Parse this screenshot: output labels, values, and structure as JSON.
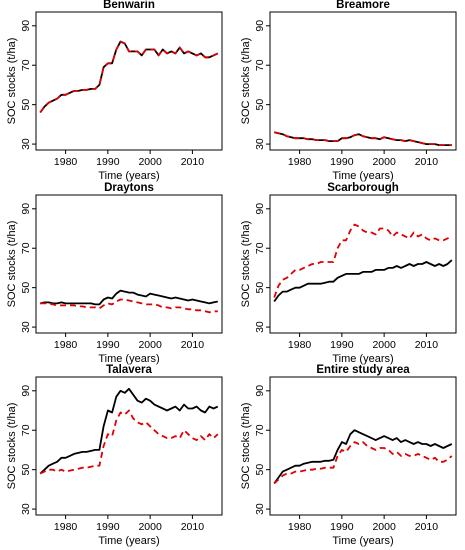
{
  "chart_data": [
    {
      "type": "line",
      "title": "Benwarin",
      "xlabel": "Time (years)",
      "ylabel": "SOC stocks (t/ha)",
      "xlim": [
        1973,
        2017
      ],
      "ylim": [
        27,
        97
      ],
      "xticks": [
        1980,
        1990,
        2000,
        2010
      ],
      "yticks": [
        30,
        50,
        70,
        90
      ],
      "grid": false,
      "x": [
        1974,
        1975,
        1976,
        1977,
        1978,
        1979,
        1980,
        1981,
        1982,
        1983,
        1984,
        1985,
        1986,
        1987,
        1988,
        1989,
        1990,
        1991,
        1992,
        1993,
        1994,
        1995,
        1996,
        1997,
        1998,
        1999,
        2000,
        2001,
        2002,
        2003,
        2004,
        2005,
        2006,
        2007,
        2008,
        2009,
        2010,
        2011,
        2012,
        2013,
        2014,
        2015,
        2016
      ],
      "series": [
        {
          "color": "#000000",
          "style": "solid",
          "values": [
            46,
            49,
            51,
            52,
            53,
            55,
            55,
            56,
            57,
            57,
            57.5,
            57.5,
            58,
            58,
            60,
            69,
            71,
            71,
            78,
            82,
            81,
            77,
            77,
            77,
            75,
            78,
            78,
            78,
            75,
            78,
            76,
            77,
            76,
            79,
            76,
            77,
            76,
            75,
            76,
            74,
            74,
            75,
            76
          ]
        },
        {
          "color": "#e00000",
          "style": "dashed",
          "values": [
            46,
            49,
            51,
            52,
            53,
            55,
            55,
            56,
            57,
            57,
            57.5,
            57.5,
            58,
            58,
            60,
            69,
            71,
            71,
            78,
            82,
            81,
            77,
            77,
            77,
            75,
            78,
            78,
            78,
            75,
            78,
            76,
            77,
            76,
            79,
            76,
            77,
            76,
            75,
            76,
            74,
            74,
            75,
            76
          ]
        }
      ]
    },
    {
      "type": "line",
      "title": "Breamore",
      "xlabel": "Time (years)",
      "ylabel": "SOC stocks (t/ha)",
      "xlim": [
        1973,
        2017
      ],
      "ylim": [
        27,
        97
      ],
      "xticks": [
        1980,
        1990,
        2000,
        2010
      ],
      "yticks": [
        30,
        50,
        70,
        90
      ],
      "grid": false,
      "x": [
        1974,
        1975,
        1976,
        1977,
        1978,
        1979,
        1980,
        1981,
        1982,
        1983,
        1984,
        1985,
        1986,
        1987,
        1988,
        1989,
        1990,
        1991,
        1992,
        1993,
        1994,
        1995,
        1996,
        1997,
        1998,
        1999,
        2000,
        2001,
        2002,
        2003,
        2004,
        2005,
        2006,
        2007,
        2008,
        2009,
        2010,
        2011,
        2012,
        2013,
        2014,
        2015,
        2016
      ],
      "series": [
        {
          "color": "#000000",
          "style": "solid",
          "values": [
            36,
            35.5,
            35,
            34,
            33.5,
            33,
            33,
            33,
            32.5,
            32.5,
            32,
            32,
            32,
            31.5,
            31.5,
            31.5,
            33,
            33,
            33.5,
            34.5,
            35,
            34,
            33.5,
            33,
            33,
            32.5,
            33.5,
            33,
            32.5,
            32,
            32,
            31.5,
            32,
            31.5,
            31,
            30.5,
            30,
            30,
            30,
            29.5,
            29.5,
            29.5,
            29.5
          ]
        },
        {
          "color": "#e00000",
          "style": "dashed",
          "values": [
            36,
            35.5,
            35,
            34,
            33.5,
            33,
            33,
            33,
            32.5,
            32.5,
            32,
            32,
            32,
            31.5,
            31.5,
            31.5,
            33,
            33,
            33.5,
            34.5,
            35,
            34,
            33.5,
            33,
            33,
            32.5,
            33.5,
            33,
            32.5,
            32,
            32,
            31.5,
            32,
            31.5,
            31,
            30.5,
            30,
            30,
            30,
            29.5,
            29.5,
            29.5,
            29.5
          ]
        }
      ]
    },
    {
      "type": "line",
      "title": "Draytons",
      "xlabel": "Time (years)",
      "ylabel": "SOC stocks (t/ha)",
      "xlim": [
        1973,
        2017
      ],
      "ylim": [
        27,
        97
      ],
      "xticks": [
        1980,
        1990,
        2000,
        2010
      ],
      "yticks": [
        30,
        50,
        70,
        90
      ],
      "grid": false,
      "x": [
        1974,
        1975,
        1976,
        1977,
        1978,
        1979,
        1980,
        1981,
        1982,
        1983,
        1984,
        1985,
        1986,
        1987,
        1988,
        1989,
        1990,
        1991,
        1992,
        1993,
        1994,
        1995,
        1996,
        1997,
        1998,
        1999,
        2000,
        2001,
        2002,
        2003,
        2004,
        2005,
        2006,
        2007,
        2008,
        2009,
        2010,
        2011,
        2012,
        2013,
        2014,
        2015,
        2016
      ],
      "series": [
        {
          "color": "#000000",
          "style": "solid",
          "values": [
            42,
            42.5,
            42.5,
            42,
            42,
            42.5,
            42,
            42,
            42,
            42,
            42,
            42,
            42,
            41.5,
            41.5,
            44,
            45,
            44.5,
            47,
            48.5,
            48,
            47.5,
            47.5,
            46.5,
            46,
            45.5,
            47,
            46.5,
            46,
            45.5,
            45,
            44.5,
            45,
            44.5,
            44,
            43.5,
            44,
            43.5,
            43,
            42.5,
            42,
            42.5,
            43
          ]
        },
        {
          "color": "#e00000",
          "style": "dashed",
          "values": [
            42,
            42,
            42,
            41.5,
            41,
            41,
            41,
            41,
            41,
            40.5,
            40.5,
            40,
            40,
            40,
            39.5,
            41,
            42,
            41.5,
            43,
            44,
            44,
            43.5,
            43,
            42.5,
            42,
            41.5,
            41.5,
            41.5,
            41,
            40,
            40,
            39.5,
            40,
            40,
            39.5,
            39,
            39,
            38.5,
            38.5,
            38,
            37.5,
            38,
            38
          ]
        }
      ]
    },
    {
      "type": "line",
      "title": "Scarborough",
      "xlabel": "Time (years)",
      "ylabel": "SOC stocks (t/ha)",
      "xlim": [
        1973,
        2017
      ],
      "ylim": [
        27,
        97
      ],
      "xticks": [
        1980,
        1990,
        2000,
        2010
      ],
      "yticks": [
        30,
        50,
        70,
        90
      ],
      "grid": false,
      "x": [
        1974,
        1975,
        1976,
        1977,
        1978,
        1979,
        1980,
        1981,
        1982,
        1983,
        1984,
        1985,
        1986,
        1987,
        1988,
        1989,
        1990,
        1991,
        1992,
        1993,
        1994,
        1995,
        1996,
        1997,
        1998,
        1999,
        2000,
        2001,
        2002,
        2003,
        2004,
        2005,
        2006,
        2007,
        2008,
        2009,
        2010,
        2011,
        2012,
        2013,
        2014,
        2015,
        2016
      ],
      "series": [
        {
          "color": "#000000",
          "style": "solid",
          "values": [
            43,
            46,
            48,
            48,
            49,
            50,
            50,
            51,
            52,
            52,
            52,
            52,
            52.5,
            53,
            53,
            55,
            56,
            57,
            57,
            57,
            57,
            58,
            58,
            58,
            59,
            59,
            59,
            60,
            60,
            61,
            60,
            61,
            62,
            61,
            62,
            62,
            63,
            62,
            61,
            62,
            61,
            62,
            64
          ]
        },
        {
          "color": "#e00000",
          "style": "dashed",
          "values": [
            45,
            51,
            54,
            55,
            57,
            59,
            59,
            60,
            61,
            62,
            62,
            63,
            63,
            63,
            63,
            70,
            74,
            74,
            79,
            82,
            81,
            79,
            78,
            78,
            77,
            80,
            80,
            79,
            76,
            78,
            77,
            76,
            75,
            78,
            76,
            77,
            75,
            74,
            75,
            74,
            74,
            75,
            76
          ]
        }
      ]
    },
    {
      "type": "line",
      "title": "Talavera",
      "xlabel": "Time (years)",
      "ylabel": "SOC stocks (t/ha)",
      "xlim": [
        1973,
        2017
      ],
      "ylim": [
        27,
        97
      ],
      "xticks": [
        1980,
        1990,
        2000,
        2010
      ],
      "yticks": [
        30,
        50,
        70,
        90
      ],
      "grid": false,
      "x": [
        1974,
        1975,
        1976,
        1977,
        1978,
        1979,
        1980,
        1981,
        1982,
        1983,
        1984,
        1985,
        1986,
        1987,
        1988,
        1989,
        1990,
        1991,
        1992,
        1993,
        1994,
        1995,
        1996,
        1997,
        1998,
        1999,
        2000,
        2001,
        2002,
        2003,
        2004,
        2005,
        2006,
        2007,
        2008,
        2009,
        2010,
        2011,
        2012,
        2013,
        2014,
        2015,
        2016
      ],
      "series": [
        {
          "color": "#000000",
          "style": "solid",
          "values": [
            48,
            50,
            52,
            53,
            54,
            56,
            56,
            57,
            58,
            58.5,
            59,
            59,
            59.5,
            60,
            60,
            72,
            80,
            79,
            87,
            90,
            89,
            91,
            88,
            85,
            84,
            86,
            85,
            83,
            82,
            81,
            80,
            81,
            82,
            80,
            83,
            81,
            81,
            82,
            80,
            79,
            82,
            81,
            82
          ]
        },
        {
          "color": "#e00000",
          "style": "dashed",
          "values": [
            48,
            49,
            50,
            50,
            49,
            50,
            49,
            49.5,
            50,
            50.5,
            51,
            51,
            51.5,
            52,
            52,
            62,
            68,
            67,
            75,
            79,
            78,
            80,
            76,
            74,
            73,
            74,
            72,
            70,
            68,
            67,
            66,
            66,
            67,
            66,
            70,
            68,
            66,
            65,
            67,
            65,
            68,
            66,
            68
          ]
        }
      ]
    },
    {
      "type": "line",
      "title": "Entire study area",
      "xlabel": "Time (years)",
      "ylabel": "SOC stocks (t/ha)",
      "xlim": [
        1973,
        2017
      ],
      "ylim": [
        27,
        97
      ],
      "xticks": [
        1980,
        1990,
        2000,
        2010
      ],
      "yticks": [
        30,
        50,
        70,
        90
      ],
      "grid": false,
      "x": [
        1974,
        1975,
        1976,
        1977,
        1978,
        1979,
        1980,
        1981,
        1982,
        1983,
        1984,
        1985,
        1986,
        1987,
        1988,
        1989,
        1990,
        1991,
        1992,
        1993,
        1994,
        1995,
        1996,
        1997,
        1998,
        1999,
        2000,
        2001,
        2002,
        2003,
        2004,
        2005,
        2006,
        2007,
        2008,
        2009,
        2010,
        2011,
        2012,
        2013,
        2014,
        2015,
        2016
      ],
      "series": [
        {
          "color": "#000000",
          "style": "solid",
          "values": [
            43,
            46,
            49,
            50,
            51,
            52,
            52,
            53,
            53.5,
            54,
            54,
            54,
            54.5,
            54.5,
            55,
            60,
            64,
            63,
            68,
            70,
            69,
            68,
            67,
            66,
            65,
            66,
            67,
            66,
            65,
            66,
            64,
            65,
            64,
            63,
            64,
            63,
            63,
            62,
            63,
            62,
            61,
            62,
            63
          ]
        },
        {
          "color": "#e00000",
          "style": "dashed",
          "values": [
            43,
            45,
            47,
            48,
            48,
            49,
            49,
            49.5,
            50,
            50,
            50.5,
            50.5,
            51,
            51,
            51,
            57,
            60,
            59,
            62,
            64,
            63,
            64,
            62,
            61,
            60,
            61,
            61,
            60,
            58,
            59,
            57,
            58,
            57,
            57,
            58,
            57,
            56,
            55,
            56,
            54,
            54,
            55,
            57
          ]
        }
      ]
    }
  ]
}
